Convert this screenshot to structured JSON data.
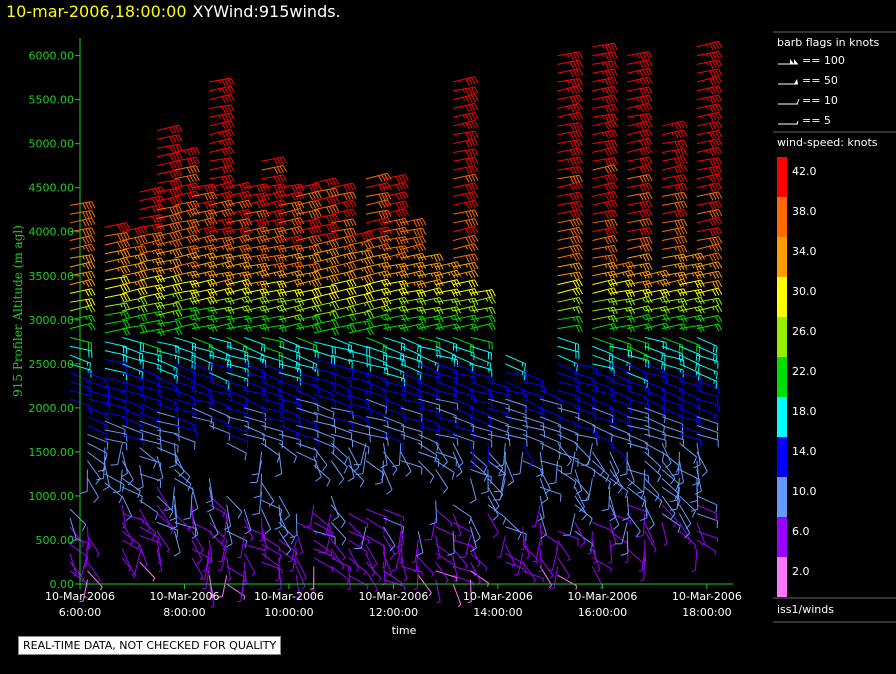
{
  "header": {
    "datetime": "10-mar-2006,18:00:00",
    "product": "XYWind:915winds."
  },
  "qc_notice": "REAL-TIME DATA, NOT CHECKED FOR QUALITY",
  "colors": {
    "axis": "#22cc22",
    "text": "#ffffff",
    "header_date": "#ffff00",
    "background": "#000000"
  },
  "barb_legend": {
    "title": "barb flags in knots",
    "items": [
      {
        "label": "== 100",
        "knots": 100
      },
      {
        "label": "== 50",
        "knots": 50
      },
      {
        "label": "== 10",
        "knots": 10
      },
      {
        "label": "== 5",
        "knots": 5
      }
    ]
  },
  "color_legend": {
    "title": "wind-speed: knots",
    "bins": [
      {
        "label": "42.0",
        "color": "#ff0000"
      },
      {
        "label": "38.0",
        "color": "#ff6a00"
      },
      {
        "label": "34.0",
        "color": "#ff9c00"
      },
      {
        "label": "30.0",
        "color": "#ffff00"
      },
      {
        "label": "26.0",
        "color": "#99ee00"
      },
      {
        "label": "22.0",
        "color": "#00dd00"
      },
      {
        "label": "18.0",
        "color": "#00ffff"
      },
      {
        "label": "14.0",
        "color": "#0000ff"
      },
      {
        "label": "10.0",
        "color": "#6699ff"
      },
      {
        "label": "6.0",
        "color": "#9900ff"
      },
      {
        "label": "2.0",
        "color": "#ff77ff"
      }
    ]
  },
  "station": "iss1/winds",
  "chart_data": {
    "type": "scatter",
    "title": "10-mar-2006,18:00:00 XYWind:915winds.",
    "xlabel": "time",
    "ylabel": "915 Profiler Altitude (m agl)",
    "ylim": [
      0,
      6200
    ],
    "yticks": [
      "0.00",
      "500.00",
      "1000.00",
      "1500.00",
      "2000.00",
      "2500.00",
      "3000.00",
      "3500.00",
      "4000.00",
      "4500.00",
      "5000.00",
      "5500.00",
      "6000.00"
    ],
    "xticks": [
      {
        "date": "10-Mar-2006",
        "time": "6:00:00"
      },
      {
        "date": "10-Mar-2006",
        "time": "8:00:00"
      },
      {
        "date": "10-Mar-2006",
        "time": "10:00:00"
      },
      {
        "date": "10-Mar-2006",
        "time": "12:00:00"
      },
      {
        "date": "10-Mar-2006",
        "time": "14:00:00"
      },
      {
        "date": "10-Mar-2006",
        "time": "16:00:00"
      },
      {
        "date": "10-Mar-2006",
        "time": "18:00:00"
      }
    ],
    "xlim": [
      "10-Mar-2006 06:00",
      "10-Mar-2006 18:30"
    ],
    "profiles": [
      {
        "time": "06:00",
        "top": 4350,
        "bottom": 2100,
        "lowtop": 850,
        "lowbottom": 150
      },
      {
        "time": "06:20",
        "top": 2400,
        "bottom": 1200,
        "lowtop": 700,
        "lowbottom": 50
      },
      {
        "time": "06:40",
        "top": 4050,
        "bottom": 1150,
        "lowtop": 1150,
        "lowbottom": 100
      },
      {
        "time": "07:00",
        "top": 4000,
        "bottom": 1300,
        "lowtop": 1250,
        "lowbottom": 300
      },
      {
        "time": "07:20",
        "top": 4450,
        "bottom": 1250,
        "lowtop": 1000,
        "lowbottom": 250
      },
      {
        "time": "07:40",
        "top": 5200,
        "bottom": 1450,
        "lowtop": 1100,
        "lowbottom": 400
      },
      {
        "time": "08:00",
        "top": 4950,
        "bottom": 1500,
        "lowtop": 1400,
        "lowbottom": 600
      },
      {
        "time": "08:20",
        "top": 4500,
        "bottom": 1900,
        "lowtop": 1100,
        "lowbottom": 300
      },
      {
        "time": "08:40",
        "top": 5700,
        "bottom": 1800,
        "lowtop": 1200,
        "lowbottom": 0
      },
      {
        "time": "09:00",
        "top": 4550,
        "bottom": 1600,
        "lowtop": 1050,
        "lowbottom": 0
      },
      {
        "time": "09:20",
        "top": 4550,
        "bottom": 1700,
        "lowtop": 900,
        "lowbottom": 50
      },
      {
        "time": "09:40",
        "top": 4850,
        "bottom": 1400,
        "lowtop": 1300,
        "lowbottom": 250
      },
      {
        "time": "10:00",
        "top": 4500,
        "bottom": 1500,
        "lowtop": 1000,
        "lowbottom": 200
      },
      {
        "time": "10:20",
        "top": 4500,
        "bottom": 1500,
        "lowtop": 800,
        "lowbottom": 100
      },
      {
        "time": "10:40",
        "top": 4550,
        "bottom": 1350,
        "lowtop": 900,
        "lowbottom": 100
      },
      {
        "time": "11:00",
        "top": 4550,
        "bottom": 1400,
        "lowtop": 1000,
        "lowbottom": 200
      },
      {
        "time": "11:20",
        "top": 3950,
        "bottom": 1350,
        "lowtop": 800,
        "lowbottom": 100
      },
      {
        "time": "11:40",
        "top": 4600,
        "bottom": 1400,
        "lowtop": 900,
        "lowbottom": 150
      },
      {
        "time": "12:00",
        "top": 4600,
        "bottom": 1300,
        "lowtop": 850,
        "lowbottom": 50
      },
      {
        "time": "12:20",
        "top": 4100,
        "bottom": 1400,
        "lowtop": 700,
        "lowbottom": 200
      },
      {
        "time": "12:40",
        "top": 3700,
        "bottom": 1400,
        "lowtop": 600,
        "lowbottom": 100
      },
      {
        "time": "13:00",
        "top": 3600,
        "bottom": 1300,
        "lowtop": 1000,
        "lowbottom": 50
      },
      {
        "time": "13:20",
        "top": 5750,
        "bottom": 1500,
        "lowtop": 900,
        "lowbottom": 0
      },
      {
        "time": "13:40",
        "top": 3300,
        "bottom": 1200,
        "lowtop": 800,
        "lowbottom": 50
      },
      {
        "time": "14:00",
        "top": 2300,
        "bottom": 800,
        "lowtop": 800,
        "lowbottom": 200
      },
      {
        "time": "14:20",
        "top": 2600,
        "bottom": 1200,
        "lowtop": 800,
        "lowbottom": 250
      },
      {
        "time": "14:40",
        "top": 2400,
        "bottom": 1400,
        "lowtop": 700,
        "lowbottom": 150
      },
      {
        "time": "15:00",
        "top": 2200,
        "bottom": 1000,
        "lowtop": 900,
        "lowbottom": 200
      },
      {
        "time": "15:20",
        "top": 6050,
        "bottom": 1300,
        "lowtop": 600,
        "lowbottom": 100
      },
      {
        "time": "15:40",
        "top": 2550,
        "bottom": 600,
        "lowtop": 600,
        "lowbottom": 0
      },
      {
        "time": "16:00",
        "top": 6100,
        "bottom": 1200,
        "lowtop": 700,
        "lowbottom": 200
      },
      {
        "time": "16:20",
        "top": 3650,
        "bottom": 500,
        "lowtop": 500,
        "lowbottom": 100
      },
      {
        "time": "16:40",
        "top": 6050,
        "bottom": 400,
        "lowtop": 400,
        "lowbottom": 50
      },
      {
        "time": "17:00",
        "top": 3500,
        "bottom": 300,
        "lowtop": 300,
        "lowbottom": 0
      },
      {
        "time": "17:20",
        "top": 5200,
        "bottom": 700,
        "lowtop": 700,
        "lowbottom": 150
      },
      {
        "time": "17:40",
        "top": 3700,
        "bottom": 600,
        "lowtop": 600,
        "lowbottom": 150
      },
      {
        "time": "18:00",
        "top": 6150,
        "bottom": 400,
        "lowtop": 400,
        "lowbottom": 100
      }
    ],
    "speed_profile_knots": [
      {
        "altitude": 0,
        "speed": 4
      },
      {
        "altitude": 1000,
        "speed": 9
      },
      {
        "altitude": 2000,
        "speed": 12
      },
      {
        "altitude": 2500,
        "speed": 16
      },
      {
        "altitude": 3000,
        "speed": 23
      },
      {
        "altitude": 3500,
        "speed": 34
      },
      {
        "altitude": 4000,
        "speed": 40
      },
      {
        "altitude": 6200,
        "speed": 44
      }
    ]
  }
}
